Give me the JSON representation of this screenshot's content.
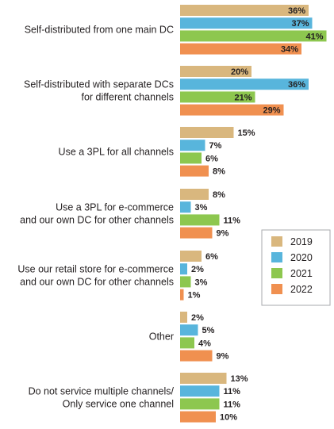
{
  "chart_data": {
    "type": "bar",
    "orientation": "horizontal",
    "categories": [
      [
        "Self-distributed from one main DC"
      ],
      [
        "Self-distributed with separate DCs",
        "for different channels"
      ],
      [
        "Use a 3PL for all channels"
      ],
      [
        "Use a 3PL for e-commerce",
        "and our own DC for other channels"
      ],
      [
        "Use our retail store for e-commerce",
        "and our own DC for other channels"
      ],
      [
        "Other"
      ],
      [
        "Do not service multiple channels/",
        "Only service one channel"
      ]
    ],
    "series": [
      {
        "name": "2019",
        "color": "#d9b77e",
        "values": [
          36,
          20,
          15,
          8,
          6,
          2,
          13
        ]
      },
      {
        "name": "2020",
        "color": "#58b5dc",
        "values": [
          37,
          36,
          7,
          3,
          2,
          5,
          11
        ]
      },
      {
        "name": "2021",
        "color": "#8dc74f",
        "values": [
          41,
          21,
          6,
          11,
          3,
          4,
          11
        ]
      },
      {
        "name": "2022",
        "color": "#f09050",
        "values": [
          34,
          29,
          8,
          9,
          1,
          9,
          10
        ]
      }
    ],
    "value_suffix": "%",
    "grid": false,
    "legend_position": "right",
    "title": "",
    "xlabel": "",
    "ylabel": ""
  }
}
